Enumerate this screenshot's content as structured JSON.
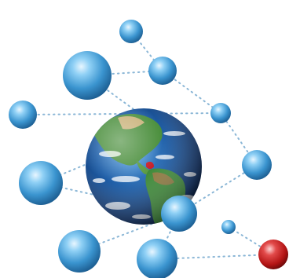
{
  "colors": {
    "background": "#ffffff",
    "sphere_blue": "#4aa3d8",
    "sphere_red": "#c81e1e",
    "globe_ocean": "#1f5fa8",
    "globe_land": "#3f8a3a",
    "connector": "#8ab6d6"
  },
  "icons": [
    "globe-icon",
    "network-node-icon"
  ],
  "network": {
    "node_count": 14,
    "highlighted_node_color": "red"
  }
}
